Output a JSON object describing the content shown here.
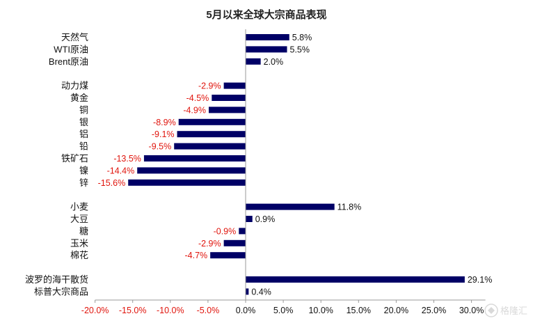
{
  "chart_data": {
    "type": "bar",
    "orientation": "horizontal",
    "title": "5月以来全球大宗商品表现",
    "xlabel": "",
    "ylabel": "",
    "xlim": [
      -20,
      30
    ],
    "x_ticks": [
      "-20.0%",
      "-15.0%",
      "-10.0%",
      "-5.0%",
      "0.0%",
      "5.0%",
      "10.0%",
      "15.0%",
      "20.0%",
      "25.0%",
      "30.0%"
    ],
    "legend": "none",
    "grid": false,
    "groups": [
      {
        "categories": [
          "天然气",
          "WTI原油",
          "Brent原油"
        ],
        "values": [
          5.8,
          5.5,
          2.0
        ],
        "labels": [
          "5.8%",
          "5.5%",
          "2.0%"
        ]
      },
      {
        "categories": [
          "动力煤",
          "黄金",
          "铜",
          "银",
          "铝",
          "铅",
          "铁矿石",
          "镍",
          "锌"
        ],
        "values": [
          -2.9,
          -4.5,
          -4.9,
          -8.9,
          -9.1,
          -9.5,
          -13.5,
          -14.4,
          -15.6
        ],
        "labels": [
          "-2.9%",
          "-4.5%",
          "-4.9%",
          "-8.9%",
          "-9.1%",
          "-9.5%",
          "-13.5%",
          "-14.4%",
          "-15.6%"
        ]
      },
      {
        "categories": [
          "小麦",
          "大豆",
          "糖",
          "玉米",
          "棉花"
        ],
        "values": [
          11.8,
          0.9,
          -0.9,
          -2.9,
          -4.7
        ],
        "labels": [
          "11.8%",
          "0.9%",
          "-0.9%",
          "-2.9%",
          "-4.7%"
        ]
      },
      {
        "categories": [
          "波罗的海干散货",
          "标普大宗商品"
        ],
        "values": [
          29.1,
          0.4
        ],
        "labels": [
          "29.1%",
          "0.4%"
        ]
      }
    ]
  },
  "colors": {
    "bar": "#000066",
    "negative_text": "#e0140c",
    "positive_text": "#111111",
    "axis": "#999999"
  },
  "watermark": "格隆汇"
}
